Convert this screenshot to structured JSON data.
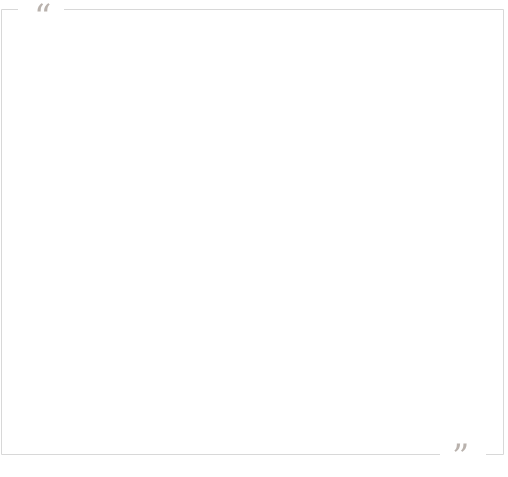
{
  "quote": {
    "open_mark": "“",
    "close_mark": "”",
    "text": ""
  },
  "colors": {
    "border": "#d8d8d8",
    "quote_mark": "#b9b2ad",
    "background": "#ffffff"
  }
}
